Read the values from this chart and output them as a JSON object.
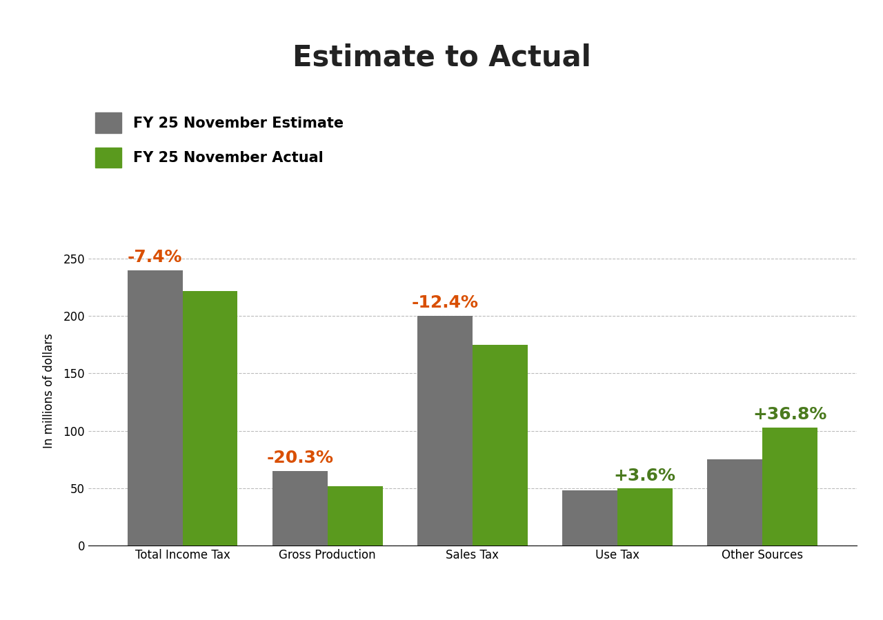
{
  "title": "Estimate to Actual",
  "categories": [
    "Total Income Tax",
    "Gross Production",
    "Sales Tax",
    "Use Tax",
    "Other Sources"
  ],
  "estimate_values": [
    240,
    65,
    200,
    48,
    75
  ],
  "actual_values": [
    222,
    52,
    175,
    49.7,
    103
  ],
  "pct_labels": [
    "-7.4%",
    "-20.3%",
    "-12.4%",
    "+3.6%",
    "+36.8%"
  ],
  "pct_colors": [
    "#d94f00",
    "#d94f00",
    "#d94f00",
    "#4a7a1e",
    "#4a7a1e"
  ],
  "estimate_color": "#737373",
  "actual_color": "#5a9a1e",
  "ylabel": "In millions of dollars",
  "ylim": [
    0,
    270
  ],
  "yticks": [
    0,
    50,
    100,
    150,
    200,
    250
  ],
  "legend_estimate": "FY 25 November Estimate",
  "legend_actual": "FY 25 November Actual",
  "background_color": "#ffffff",
  "grid_color": "#bbbbbb",
  "title_fontsize": 30,
  "label_fontsize": 12,
  "tick_fontsize": 12,
  "legend_fontsize": 15,
  "pct_fontsize": 18,
  "bar_width": 0.38
}
